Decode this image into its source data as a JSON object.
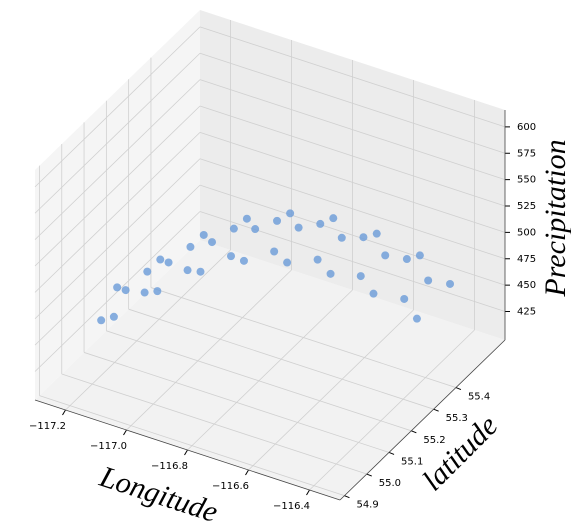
{
  "chart_data": {
    "type": "scatter3d",
    "xlabel": "Longitude",
    "ylabel": "latitude",
    "zlabel": "Precipitation",
    "xlim": [
      -117.3,
      -116.3
    ],
    "ylim": [
      54.88,
      55.62
    ],
    "zlim": [
      398,
      616
    ],
    "xticks": [
      {
        "value": -117.2,
        "label": "−117.2"
      },
      {
        "value": -117.0,
        "label": "−117.0"
      },
      {
        "value": -116.8,
        "label": "−116.8"
      },
      {
        "value": -116.6,
        "label": "−116.6"
      },
      {
        "value": -116.4,
        "label": "−116.4"
      }
    ],
    "yticks": [
      54.9,
      {
        "value": 55.0,
        "label": "55.0"
      },
      55.1,
      55.2,
      55.3,
      55.4
    ],
    "zticks": [
      425,
      450,
      475,
      500,
      525,
      550,
      575,
      600
    ],
    "grid": true,
    "series": [
      {
        "color": "#6a9bd8",
        "x": [
          -117.25,
          -117.23,
          -117.209,
          -117.189,
          -117.168,
          -117.148,
          -117.127,
          -117.107,
          -117.086,
          -117.066,
          -117.045,
          -117.025,
          -117.004,
          -116.984,
          -116.963,
          -116.943,
          -116.922,
          -116.902,
          -116.881,
          -116.861,
          -116.84,
          -116.82,
          -116.799,
          -116.779,
          -116.758,
          -116.738,
          -116.717,
          -116.697,
          -116.676,
          -116.656,
          -116.635,
          -116.615,
          -116.594,
          -116.574,
          -116.553,
          -116.533,
          -116.512,
          -116.492,
          -116.471,
          -116.451
        ],
        "y": [
          55.18,
          55.081,
          55.162,
          55.082,
          55.203,
          55.234,
          55.135,
          55.215,
          55.136,
          55.257,
          55.288,
          55.188,
          55.269,
          55.19,
          55.311,
          55.342,
          55.242,
          55.323,
          55.244,
          55.365,
          55.395,
          55.296,
          55.377,
          55.298,
          55.418,
          55.449,
          55.35,
          55.431,
          55.352,
          55.472,
          55.503,
          55.404,
          55.485,
          55.405,
          55.526,
          55.557,
          55.458,
          55.538,
          55.459,
          55.58
        ],
        "z": [
          448,
          439,
          453,
          446,
          466,
          473,
          464,
          478,
          469,
          488,
          495,
          484,
          496,
          486,
          504,
          509,
          496,
          507,
          495,
          510,
          513,
          499,
          507,
          492,
          506,
          507,
          490,
          496,
          480,
          492,
          491,
          473,
          478,
          460,
          470,
          469,
          450,
          453,
          435,
          445
        ]
      }
    ]
  }
}
